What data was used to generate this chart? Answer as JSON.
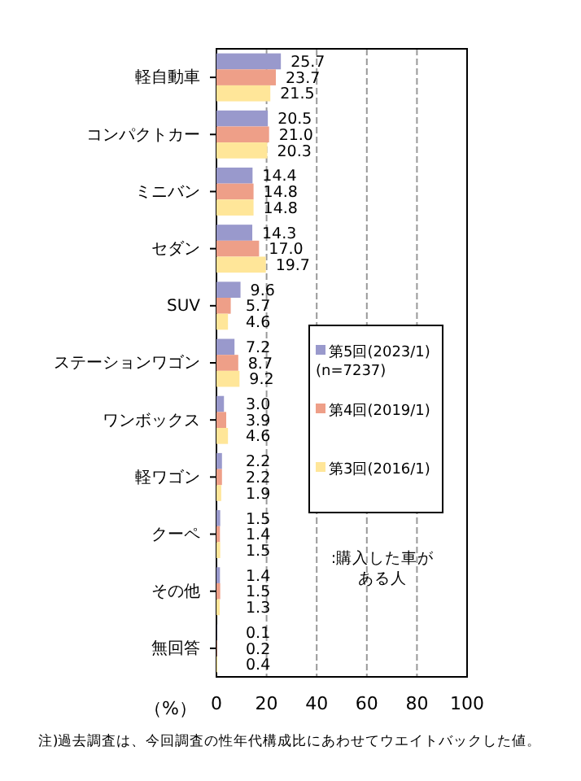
{
  "chart_data": {
    "type": "bar",
    "orientation": "horizontal",
    "categories": [
      "軽自動車",
      "コンパクトカー",
      "ミニバン",
      "セダン",
      "SUV",
      "ステーションワゴン",
      "ワンボックス",
      "軽ワゴン",
      "クーペ",
      "その他",
      "無回答"
    ],
    "series": [
      {
        "name": "第5回(2023/1) (n=7237)",
        "color": "#9999cc",
        "values": [
          25.7,
          20.5,
          14.4,
          14.3,
          9.6,
          7.2,
          3.0,
          2.2,
          1.5,
          1.4,
          0.1
        ],
        "value_labels": [
          "25.7",
          "20.5",
          "14.4",
          "14.3",
          "9.6",
          "7.2",
          "3.0",
          "2.2",
          "1.5",
          "1.4",
          "0.1"
        ]
      },
      {
        "name": "第4回(2019/1)",
        "color": "#ee9f88",
        "values": [
          23.7,
          21.0,
          14.8,
          17.0,
          5.7,
          8.7,
          3.9,
          2.2,
          1.4,
          1.5,
          0.2
        ],
        "value_labels": [
          "23.7",
          "21.0",
          "14.8",
          "17.0",
          "5.7",
          "8.7",
          "3.9",
          "2.2",
          "1.4",
          "1.5",
          "0.2"
        ]
      },
      {
        "name": "第3回(2016/1)",
        "color": "#ffe699",
        "values": [
          21.5,
          20.3,
          14.8,
          19.7,
          4.6,
          9.2,
          4.6,
          1.9,
          1.5,
          1.3,
          0.4
        ],
        "value_labels": [
          "21.5",
          "20.3",
          "14.8",
          "19.7",
          "4.6",
          "9.2",
          "4.6",
          "1.9",
          "1.5",
          "1.3",
          "0.4"
        ]
      }
    ],
    "xlim": [
      0,
      100
    ],
    "xticks": [
      0,
      20,
      40,
      60,
      80,
      100
    ],
    "xlabel": "（%）",
    "grid": "x",
    "legend": "right",
    "annotations": [
      ":購入した車がある人",
      "注)過去調査は、今回調査の性年代構成比にあわせてウエイトバックした値。"
    ]
  }
}
